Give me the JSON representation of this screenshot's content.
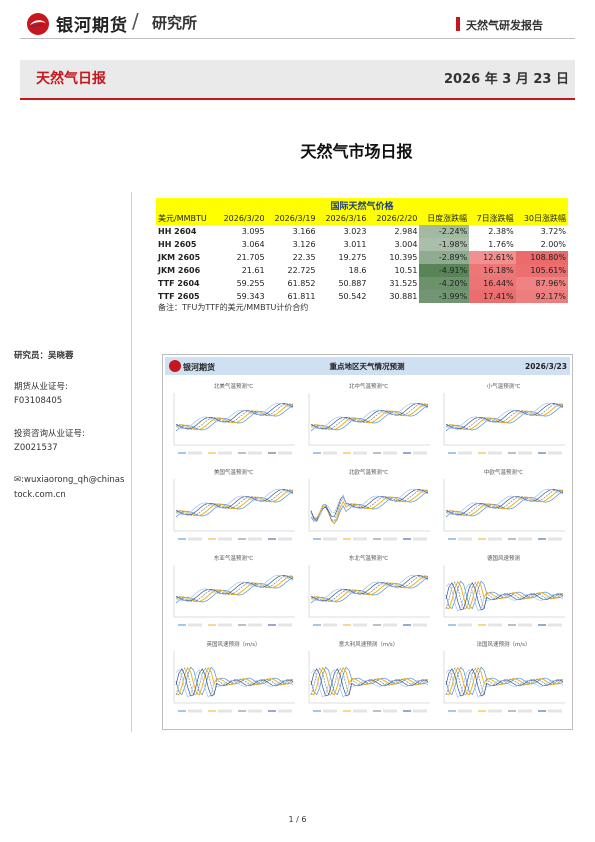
{
  "header": {
    "brand": "银河期货",
    "divider": "/",
    "sub_brand": "研究所",
    "report_type": "天然气研发报告",
    "colors": {
      "brand_red": "#c6161e",
      "brand_navy": "#1f3f7f"
    }
  },
  "title_band": {
    "title": "天然气日报",
    "date": "2026 年 3 月 23 日"
  },
  "main_title": "天然气市场日报",
  "sidebar": {
    "analyst": "研究员：吴晓蓉",
    "license_label": "期货从业证号:",
    "license": "F03108405",
    "consult_label": "投资咨询从业证号:",
    "consult": "Z0021537",
    "email_line1": "✉:wuxiaorong_qh@chinas",
    "email_line2": "tock.com.cn"
  },
  "price_table": {
    "title": "国际天然气价格",
    "headers": [
      "美元/MMBTU",
      "2026/3/20",
      "2026/3/19",
      "2026/3/16",
      "2026/2/20",
      "日度涨跌幅",
      "7日涨跌幅",
      "30日涨跌幅"
    ],
    "rows": [
      [
        "HH 2604",
        "3.095",
        "3.166",
        "3.023",
        "2.984",
        "-2.24%",
        "2.38%",
        "3.72%"
      ],
      [
        "HH 2605",
        "3.064",
        "3.126",
        "3.011",
        "3.004",
        "-1.98%",
        "1.76%",
        "2.00%"
      ],
      [
        "JKM 2605",
        "21.705",
        "22.35",
        "19.275",
        "10.395",
        "-2.89%",
        "12.61%",
        "108.80%"
      ],
      [
        "JKM 2606",
        "21.61",
        "22.725",
        "18.6",
        "10.51",
        "-4.91%",
        "16.18%",
        "105.61%"
      ],
      [
        "TTF 2604",
        "59.255",
        "61.852",
        "50.887",
        "31.525",
        "-4.20%",
        "16.44%",
        "87.96%"
      ],
      [
        "TTF 2605",
        "59.343",
        "61.811",
        "50.542",
        "30.881",
        "-3.99%",
        "17.41%",
        "92.17%"
      ]
    ],
    "change_values": [
      [
        -2.24,
        2.38,
        3.72
      ],
      [
        -1.98,
        1.76,
        2.0
      ],
      [
        -2.89,
        12.61,
        108.8
      ],
      [
        -4.91,
        16.18,
        105.61
      ],
      [
        -4.2,
        16.44,
        87.96
      ],
      [
        -3.99,
        17.41,
        92.17
      ]
    ],
    "note": "备注：TFU为TTF的美元/MMBTU计价合约"
  },
  "chart_panel": {
    "title": "重点地区天气情况预测",
    "date": "2026/3/23",
    "mini_titles": [
      "北美气温预测℃",
      "北中气温预测℃",
      "小气温预测℃",
      "美国气温预测℃",
      "北欧气温预测℃",
      "中欧气温预测℃",
      "东亚气温预测℃",
      "东北气温预测℃",
      "德国风速预测",
      "英国风速预测（m/s）",
      "意大利风速预测（m/s）",
      "法国风速预测（m/s）"
    ]
  },
  "page_number": "1 / 6"
}
